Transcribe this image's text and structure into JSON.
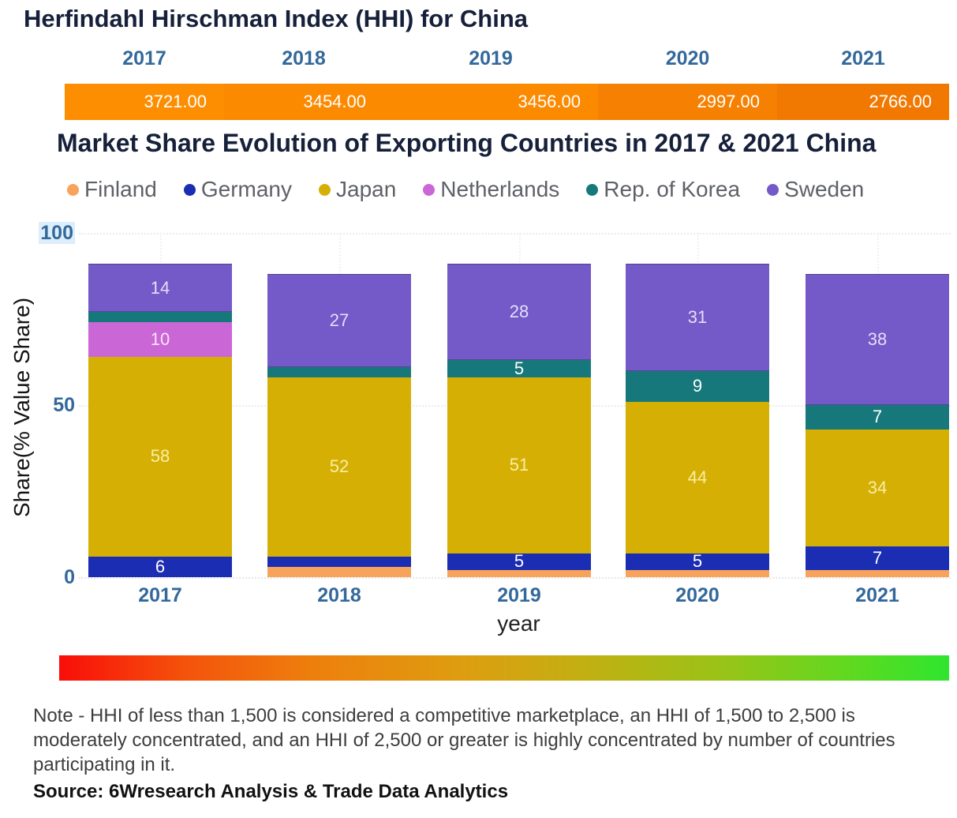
{
  "hhi": {
    "title": "Herfindahl Hirschman Index (HHI) for China",
    "years": [
      "2017",
      "2018",
      "2019",
      "2020",
      "2021"
    ],
    "values": [
      "3721.00",
      "3454.00",
      "3456.00",
      "2997.00",
      "2766.00"
    ],
    "cell_colors": [
      "#FD8E01",
      "#FC8A01",
      "#FC8A01",
      "#F68001",
      "#F17901"
    ]
  },
  "chart_data": {
    "type": "bar",
    "stacked": true,
    "title": "Market Share Evolution of Exporting Countries in 2017 & 2021 China",
    "categories": [
      "2017",
      "2018",
      "2019",
      "2020",
      "2021"
    ],
    "series": [
      {
        "name": "Finland",
        "color": "#F8A35C",
        "label_color": "#FFFFFF",
        "values": [
          0,
          3,
          2,
          2,
          2
        ]
      },
      {
        "name": "Germany",
        "color": "#1B2DB2",
        "label_color": "#FFFFFF",
        "values": [
          6,
          3,
          5,
          5,
          7
        ]
      },
      {
        "name": "Japan",
        "color": "#D6AF05",
        "label_color": "#F7EFA4",
        "values": [
          58,
          52,
          51,
          44,
          34
        ]
      },
      {
        "name": "Netherlands",
        "color": "#CB66D6",
        "label_color": "#FBE3FB",
        "values": [
          10,
          0,
          0,
          0,
          0
        ]
      },
      {
        "name": "Rep. of Korea",
        "color": "#17787B",
        "label_color": "#FFFFFF",
        "values": [
          3,
          3,
          5,
          9,
          7
        ]
      },
      {
        "name": "Sweden",
        "color": "#7459C8",
        "label_color": "#E5DFF6",
        "values": [
          14,
          27,
          28,
          31,
          38
        ]
      }
    ],
    "xlabel": "year",
    "ylabel": "Share(% Value Share)",
    "ylim": [
      0,
      100
    ],
    "yticks": [
      "0",
      "50",
      "100"
    ],
    "legend_position": "top",
    "data_label_min_shown": 5
  },
  "footer": {
    "gradient_colors": [
      "#F90D09",
      "#EE7E0C",
      "#DE9D10",
      "#9BC217",
      "#2FE52F"
    ],
    "note": "Note - HHI of less than 1,500 is considered a competitive marketplace, an HHI of 1,500 to 2,500 is moderately concentrated, and an HHI of 2,500 or greater is highly concentrated by number of countries participating in it.",
    "source": "Source: 6Wresearch Analysis & Trade Data Analytics"
  }
}
